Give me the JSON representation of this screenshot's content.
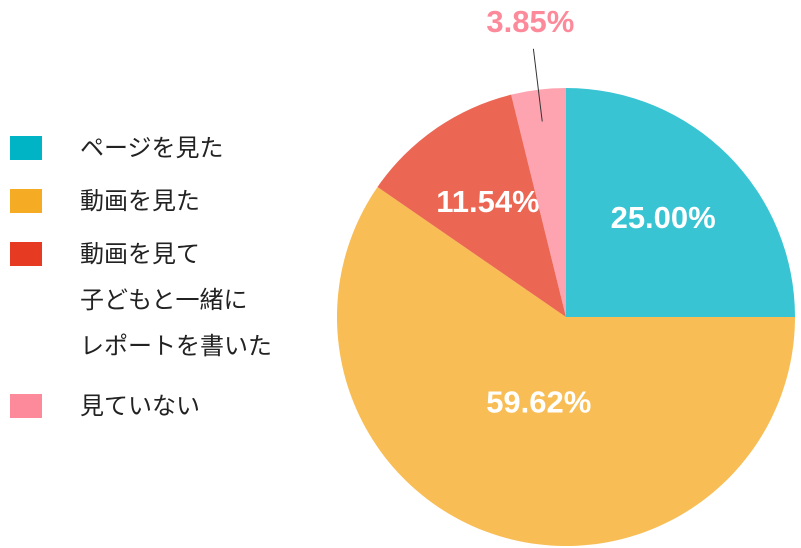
{
  "chart_data": {
    "type": "pie",
    "series": [
      {
        "name": "ページを見た",
        "color": "#00b4c6",
        "values": [
          25.0
        ],
        "value_labels": [
          "25.00%"
        ]
      },
      {
        "name": "動画を見た",
        "color": "#f6ab25",
        "values": [
          59.62
        ],
        "value_labels": [
          "59.62%"
        ]
      },
      {
        "name": "動画を見て\n子どもと一緒に\nレポートを書いた",
        "color": "#e63b22",
        "values": [
          11.54
        ],
        "value_labels": [
          "11.54%"
        ]
      },
      {
        "name": "見ていない",
        "color": "#fd8a9a",
        "values": [
          3.85
        ],
        "value_labels": [
          "3.85%"
        ]
      }
    ],
    "legend": "left"
  }
}
